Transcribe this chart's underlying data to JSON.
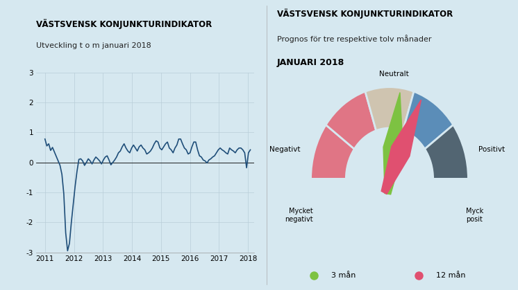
{
  "background_color": "#d6e8f0",
  "left_title": "VÄSTSVENSK KONJUNKTURINDIKATOR",
  "left_subtitle": "Utveckling t o m januari 2018",
  "right_title": "VÄSTSVENSK KONJUNKTURINDIKATOR",
  "right_subtitle": "Prognos för tre respektive tolv månader",
  "right_subtitle2": "JANUARI 2018",
  "line_color": "#1f4e79",
  "line_width": 1.2,
  "ylim": [
    -3,
    3
  ],
  "yticks": [
    -3,
    -2,
    -1,
    0,
    1,
    2,
    3
  ],
  "xlim_start": 2010.7,
  "xlim_end": 2018.2,
  "xticks": [
    2011,
    2012,
    2013,
    2014,
    2015,
    2016,
    2017,
    2018
  ],
  "grid_color": "#b8cdd8",
  "gauge_colors": {
    "mycket_negativt": "#e07585",
    "negativt": "#e07585",
    "neutralt": "#cfc4b0",
    "positivt": "#5b8db8",
    "mycket_positivt": "#526572"
  },
  "needle_3man_color": "#7dc242",
  "needle_12man_color": "#e05070",
  "gauge_labels": {
    "mycket_negativt": "Mycket\nnegativt",
    "negativt": "Negativt",
    "neutralt": "Neutralt",
    "positivt": "Positivt",
    "mycket_positivt": "Myck\nposit"
  },
  "time_series": [
    0.78,
    0.55,
    0.62,
    0.4,
    0.5,
    0.35,
    0.2,
    0.05,
    -0.1,
    -0.4,
    -1.05,
    -2.35,
    -2.95,
    -2.7,
    -2.0,
    -1.4,
    -0.8,
    -0.3,
    0.1,
    0.12,
    0.05,
    -0.1,
    0.0,
    0.12,
    0.05,
    -0.05,
    0.08,
    0.18,
    0.12,
    0.05,
    -0.05,
    0.08,
    0.18,
    0.22,
    0.08,
    -0.08,
    0.0,
    0.08,
    0.18,
    0.32,
    0.38,
    0.52,
    0.62,
    0.48,
    0.38,
    0.32,
    0.48,
    0.58,
    0.48,
    0.38,
    0.52,
    0.58,
    0.48,
    0.42,
    0.28,
    0.32,
    0.38,
    0.48,
    0.62,
    0.72,
    0.68,
    0.48,
    0.42,
    0.52,
    0.62,
    0.68,
    0.48,
    0.42,
    0.32,
    0.48,
    0.58,
    0.78,
    0.78,
    0.62,
    0.48,
    0.42,
    0.28,
    0.32,
    0.52,
    0.68,
    0.68,
    0.42,
    0.22,
    0.18,
    0.08,
    0.05,
    -0.02,
    0.08,
    0.12,
    0.18,
    0.22,
    0.32,
    0.42,
    0.48,
    0.42,
    0.38,
    0.32,
    0.28,
    0.48,
    0.42,
    0.38,
    0.32,
    0.42,
    0.48,
    0.48,
    0.42,
    0.32,
    -0.18,
    0.32,
    0.42
  ],
  "legend_3man": "3 mån",
  "legend_12man": "12 mån"
}
